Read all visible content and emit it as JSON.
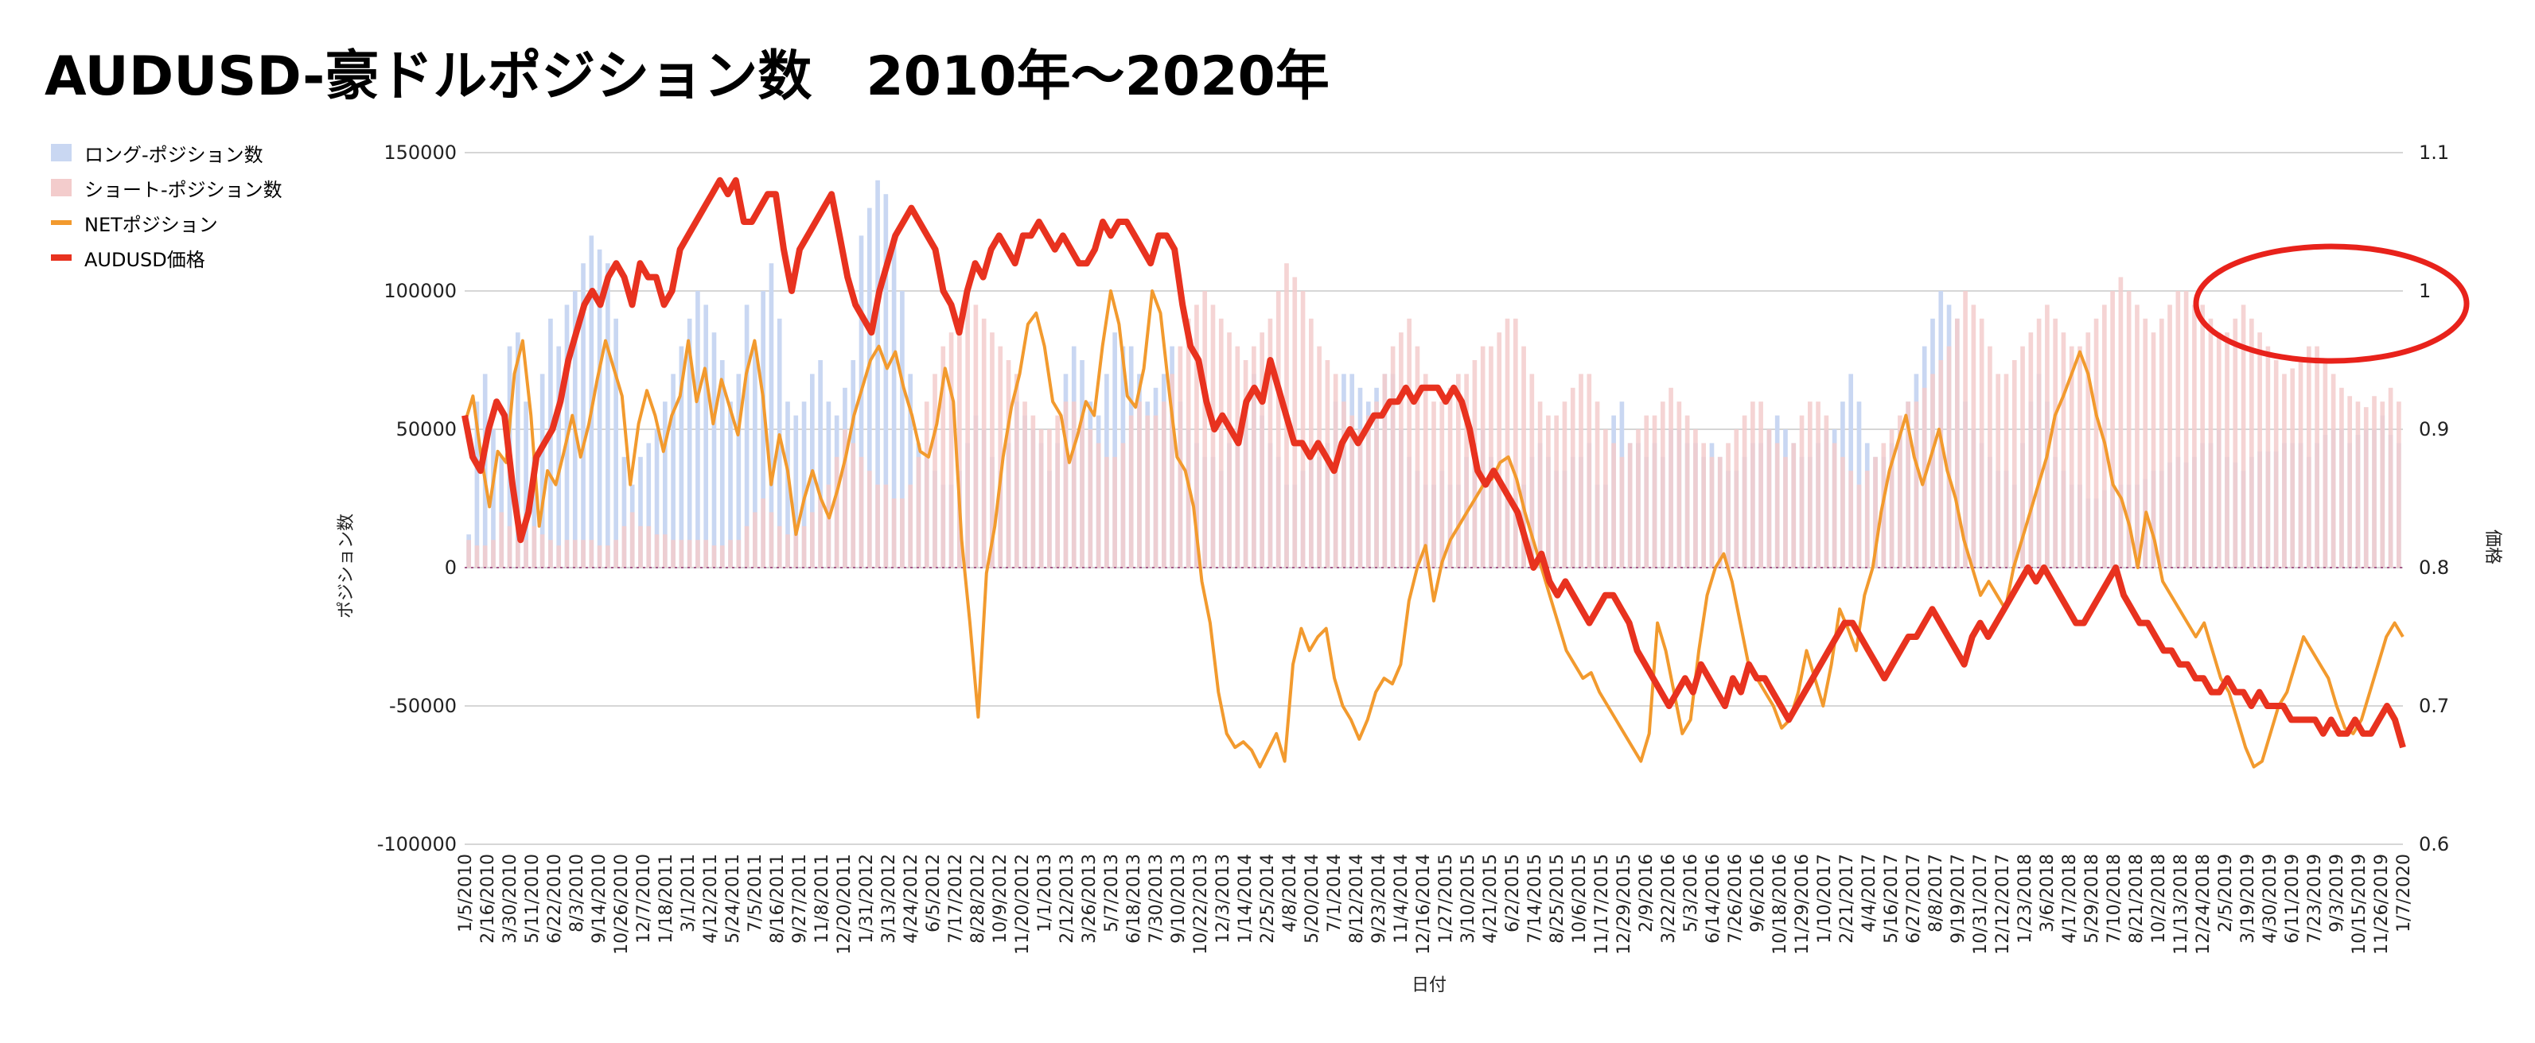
{
  "title": "AUDUSD-豪ドルポジション数　2010年〜2020年",
  "chart_data": {
    "type": "bar",
    "title": "AUDUSD-豪ドルポジション数　2010年〜2020年",
    "xlabel": "日付",
    "ylabel": "ポジション数",
    "y2label": "価格",
    "ylim": [
      -100000,
      150000
    ],
    "y2lim": [
      0.6,
      1.1
    ],
    "y_ticks": [
      "150000",
      "100000",
      "50000",
      "0",
      "-50000",
      "-100000"
    ],
    "y2_ticks": [
      "1.1",
      "1",
      "0.9",
      "0.8",
      "0.7",
      "0.6"
    ],
    "legend_position": "top-left",
    "grid": true,
    "colors": {
      "long": "#c9d7f2",
      "short": "#f3cccc",
      "net": "#f29a2e",
      "price": "#e8321f",
      "annotation": "#e8221b"
    },
    "annotation": "red-circle-highlight-top-right",
    "x_tick_labels": [
      "1/5/2010",
      "2/16/2010",
      "3/30/2010",
      "5/11/2010",
      "6/22/2010",
      "8/3/2010",
      "9/14/2010",
      "10/26/2010",
      "12/7/2010",
      "1/18/2011",
      "3/1/2011",
      "4/12/2011",
      "5/24/2011",
      "7/5/2011",
      "8/16/2011",
      "9/27/2011",
      "11/8/2011",
      "12/20/2011",
      "1/31/2012",
      "3/13/2012",
      "4/24/2012",
      "6/5/2012",
      "7/17/2012",
      "8/28/2012",
      "10/9/2012",
      "11/20/2012",
      "1/1/2013",
      "2/12/2013",
      "3/26/2013",
      "5/7/2013",
      "6/18/2013",
      "7/30/2013",
      "9/10/2013",
      "10/22/2013",
      "12/3/2013",
      "1/14/2014",
      "2/25/2014",
      "4/8/2014",
      "5/20/2014",
      "7/1/2014",
      "8/12/2014",
      "9/23/2014",
      "11/4/2014",
      "12/16/2014",
      "1/27/2015",
      "3/10/2015",
      "4/21/2015",
      "6/2/2015",
      "7/14/2015",
      "8/25/2015",
      "10/6/2015",
      "11/17/2015",
      "12/29/2015",
      "2/9/2016",
      "3/22/2016",
      "5/3/2016",
      "6/14/2016",
      "7/26/2016",
      "9/6/2016",
      "10/18/2016",
      "11/29/2016",
      "1/10/2017",
      "2/21/2017",
      "4/4/2017",
      "5/16/2017",
      "6/27/2017",
      "8/8/2017",
      "9/19/2017",
      "10/31/2017",
      "12/12/2017",
      "1/23/2018",
      "3/6/2018",
      "4/17/2018",
      "5/29/2018",
      "7/10/2018",
      "8/21/2018",
      "10/2/2018",
      "11/13/2018",
      "12/24/2018",
      "2/5/2019",
      "3/19/2019",
      "4/30/2019",
      "6/11/2019",
      "7/23/2019",
      "9/3/2019",
      "10/15/2019",
      "11/26/2019",
      "1/7/2020"
    ],
    "series": [
      {
        "name": "ロング-ポジション数",
        "kind": "bar",
        "values": [
          12000,
          60000,
          70000,
          50000,
          40000,
          80000,
          85000,
          60000,
          40000,
          70000,
          90000,
          80000,
          95000,
          100000,
          110000,
          120000,
          115000,
          110000,
          90000,
          40000,
          30000,
          40000,
          45000,
          50000,
          60000,
          70000,
          80000,
          90000,
          100000,
          95000,
          85000,
          75000,
          60000,
          70000,
          95000,
          80000,
          100000,
          110000,
          90000,
          60000,
          55000,
          60000,
          70000,
          75000,
          60000,
          55000,
          65000,
          75000,
          120000,
          130000,
          140000,
          135000,
          120000,
          100000,
          70000,
          45000,
          40000,
          35000,
          30000,
          30000,
          35000,
          45000,
          55000,
          50000,
          40000,
          35000,
          45000,
          60000,
          55000,
          50000,
          45000,
          35000,
          45000,
          70000,
          80000,
          75000,
          60000,
          55000,
          70000,
          85000,
          80000,
          80000,
          70000,
          60000,
          65000,
          70000,
          80000,
          60000,
          50000,
          45000,
          40000,
          40000,
          35000,
          45000,
          50000,
          60000,
          70000,
          55000,
          45000,
          40000,
          30000,
          30000,
          35000,
          40000,
          40000,
          45000,
          60000,
          70000,
          70000,
          65000,
          60000,
          65000,
          70000,
          70000,
          50000,
          40000,
          35000,
          30000,
          30000,
          35000,
          30000,
          30000,
          40000,
          45000,
          50000,
          40000,
          30000,
          25000,
          25000,
          30000,
          40000,
          45000,
          40000,
          35000,
          35000,
          40000,
          40000,
          45000,
          30000,
          30000,
          55000,
          60000,
          45000,
          45000,
          40000,
          45000,
          40000,
          50000,
          50000,
          45000,
          45000,
          40000,
          45000,
          40000,
          35000,
          35000,
          40000,
          45000,
          45000,
          50000,
          55000,
          50000,
          45000,
          40000,
          40000,
          45000,
          50000,
          50000,
          60000,
          70000,
          60000,
          45000,
          40000,
          40000,
          45000,
          50000,
          60000,
          70000,
          80000,
          90000,
          100000,
          95000,
          90000,
          60000,
          50000,
          45000,
          40000,
          35000,
          35000,
          30000,
          45000,
          60000,
          70000,
          60000,
          40000,
          35000,
          30000,
          30000,
          25000,
          25000,
          28000,
          30000,
          30000,
          30000,
          30000,
          32000,
          35000,
          35000,
          38000,
          40000,
          38000,
          40000,
          45000,
          45000,
          50000,
          40000,
          38000,
          35000,
          40000,
          42000,
          42000,
          42000,
          45000,
          45000,
          45000,
          40000,
          45000,
          48000,
          50000,
          50000,
          45000,
          48000,
          50000,
          50000,
          55000,
          48000,
          45000
        ]
      },
      {
        "name": "ショート-ポジション数",
        "kind": "bar",
        "values": [
          10000,
          8000,
          8000,
          10000,
          20000,
          15000,
          10000,
          10000,
          15000,
          12000,
          10000,
          8000,
          10000,
          10000,
          10000,
          10000,
          8000,
          8000,
          10000,
          15000,
          20000,
          15000,
          15000,
          12000,
          12000,
          10000,
          10000,
          10000,
          10000,
          10000,
          8000,
          8000,
          10000,
          10000,
          15000,
          20000,
          25000,
          20000,
          15000,
          12000,
          12000,
          15000,
          20000,
          25000,
          30000,
          40000,
          50000,
          45000,
          40000,
          35000,
          30000,
          30000,
          25000,
          25000,
          30000,
          40000,
          60000,
          70000,
          80000,
          85000,
          90000,
          100000,
          95000,
          90000,
          85000,
          80000,
          75000,
          70000,
          60000,
          55000,
          50000,
          50000,
          55000,
          60000,
          60000,
          55000,
          50000,
          45000,
          40000,
          40000,
          45000,
          55000,
          60000,
          55000,
          55000,
          60000,
          70000,
          80000,
          90000,
          95000,
          100000,
          95000,
          90000,
          85000,
          80000,
          75000,
          80000,
          85000,
          90000,
          100000,
          110000,
          105000,
          100000,
          90000,
          80000,
          75000,
          70000,
          60000,
          55000,
          50000,
          55000,
          60000,
          70000,
          80000,
          85000,
          90000,
          80000,
          70000,
          60000,
          60000,
          65000,
          70000,
          70000,
          75000,
          80000,
          80000,
          85000,
          90000,
          90000,
          80000,
          70000,
          60000,
          55000,
          55000,
          60000,
          65000,
          70000,
          70000,
          60000,
          50000,
          45000,
          40000,
          45000,
          50000,
          55000,
          55000,
          60000,
          65000,
          60000,
          55000,
          50000,
          45000,
          40000,
          40000,
          45000,
          50000,
          55000,
          60000,
          60000,
          50000,
          45000,
          40000,
          45000,
          55000,
          60000,
          60000,
          55000,
          45000,
          40000,
          35000,
          30000,
          35000,
          40000,
          45000,
          50000,
          55000,
          60000,
          60000,
          65000,
          70000,
          75000,
          80000,
          90000,
          100000,
          95000,
          90000,
          80000,
          70000,
          70000,
          75000,
          80000,
          85000,
          90000,
          95000,
          90000,
          85000,
          80000,
          80000,
          85000,
          90000,
          95000,
          100000,
          105000,
          100000,
          95000,
          90000,
          85000,
          90000,
          95000,
          100000,
          100000,
          95000,
          95000,
          90000,
          85000,
          85000,
          90000,
          95000,
          90000,
          85000,
          80000,
          75000,
          70000,
          72000,
          75000,
          80000,
          80000,
          75000,
          70000,
          65000,
          62000,
          60000,
          58000,
          62000,
          60000,
          65000,
          60000,
          58000
        ]
      },
      {
        "name": "NETポジション",
        "kind": "line",
        "values": [
          52000,
          62000,
          40000,
          22000,
          42000,
          38000,
          70000,
          82000,
          55000,
          15000,
          35000,
          30000,
          42000,
          55000,
          40000,
          52000,
          68000,
          82000,
          72000,
          62000,
          30000,
          52000,
          64000,
          55000,
          42000,
          55000,
          62000,
          82000,
          60000,
          72000,
          52000,
          68000,
          58000,
          48000,
          70000,
          82000,
          62000,
          30000,
          48000,
          35000,
          12000,
          25000,
          35000,
          25000,
          18000,
          28000,
          40000,
          55000,
          65000,
          75000,
          80000,
          72000,
          78000,
          65000,
          55000,
          42000,
          40000,
          52000,
          72000,
          60000,
          10000,
          -20000,
          -54000,
          -2000,
          15000,
          40000,
          58000,
          70000,
          88000,
          92000,
          80000,
          60000,
          55000,
          38000,
          48000,
          60000,
          55000,
          80000,
          100000,
          88000,
          62000,
          58000,
          72000,
          100000,
          92000,
          65000,
          40000,
          35000,
          22000,
          -5000,
          -20000,
          -45000,
          -60000,
          -65000,
          -63000,
          -66000,
          -72000,
          -66000,
          -60000,
          -70000,
          -35000,
          -22000,
          -30000,
          -25000,
          -22000,
          -40000,
          -50000,
          -55000,
          -62000,
          -55000,
          -45000,
          -40000,
          -42000,
          -35000,
          -12000,
          0,
          8000,
          -12000,
          2000,
          10000,
          15000,
          20000,
          25000,
          30000,
          32000,
          38000,
          40000,
          32000,
          20000,
          10000,
          0,
          -10000,
          -20000,
          -30000,
          -35000,
          -40000,
          -38000,
          -45000,
          -50000,
          -55000,
          -60000,
          -65000,
          -70000,
          -60000,
          -20000,
          -30000,
          -45000,
          -60000,
          -55000,
          -30000,
          -10000,
          0,
          5000,
          -5000,
          -20000,
          -35000,
          -40000,
          -45000,
          -50000,
          -58000,
          -55000,
          -45000,
          -30000,
          -40000,
          -50000,
          -35000,
          -15000,
          -22000,
          -30000,
          -10000,
          0,
          20000,
          35000,
          45000,
          55000,
          40000,
          30000,
          40000,
          50000,
          35000,
          25000,
          10000,
          0,
          -10000,
          -5000,
          -10000,
          -15000,
          0,
          10000,
          20000,
          30000,
          40000,
          55000,
          62000,
          70000,
          78000,
          70000,
          55000,
          45000,
          30000,
          25000,
          15000,
          0,
          20000,
          10000,
          -5000,
          -10000,
          -15000,
          -20000,
          -25000,
          -20000,
          -30000,
          -40000,
          -45000,
          -55000,
          -65000,
          -72000,
          -70000,
          -60000,
          -50000,
          -45000,
          -35000,
          -25000,
          -30000,
          -35000,
          -40000,
          -50000,
          -58000,
          -60000,
          -55000,
          -45000,
          -35000,
          -25000,
          -20000,
          -25000
        ]
      },
      {
        "name": "AUDUSD価格",
        "kind": "line",
        "axis": "right",
        "values": [
          0.91,
          0.88,
          0.87,
          0.9,
          0.92,
          0.91,
          0.86,
          0.82,
          0.84,
          0.88,
          0.89,
          0.9,
          0.92,
          0.95,
          0.97,
          0.99,
          1.0,
          0.99,
          1.01,
          1.02,
          1.01,
          0.99,
          1.02,
          1.01,
          1.01,
          0.99,
          1.0,
          1.03,
          1.04,
          1.05,
          1.06,
          1.07,
          1.08,
          1.07,
          1.08,
          1.05,
          1.05,
          1.06,
          1.07,
          1.07,
          1.03,
          1.0,
          1.03,
          1.04,
          1.05,
          1.06,
          1.07,
          1.04,
          1.01,
          0.99,
          0.98,
          0.97,
          1.0,
          1.02,
          1.04,
          1.05,
          1.06,
          1.05,
          1.04,
          1.03,
          1.0,
          0.99,
          0.97,
          1.0,
          1.02,
          1.01,
          1.03,
          1.04,
          1.03,
          1.02,
          1.04,
          1.04,
          1.05,
          1.04,
          1.03,
          1.04,
          1.03,
          1.02,
          1.02,
          1.03,
          1.05,
          1.04,
          1.05,
          1.05,
          1.04,
          1.03,
          1.02,
          1.04,
          1.04,
          1.03,
          0.99,
          0.96,
          0.95,
          0.92,
          0.9,
          0.91,
          0.9,
          0.89,
          0.92,
          0.93,
          0.92,
          0.95,
          0.93,
          0.91,
          0.89,
          0.89,
          0.88,
          0.89,
          0.88,
          0.87,
          0.89,
          0.9,
          0.89,
          0.9,
          0.91,
          0.91,
          0.92,
          0.92,
          0.93,
          0.92,
          0.93,
          0.93,
          0.93,
          0.92,
          0.93,
          0.92,
          0.9,
          0.87,
          0.86,
          0.87,
          0.86,
          0.85,
          0.84,
          0.82,
          0.8,
          0.81,
          0.79,
          0.78,
          0.79,
          0.78,
          0.77,
          0.76,
          0.77,
          0.78,
          0.78,
          0.77,
          0.76,
          0.74,
          0.73,
          0.72,
          0.71,
          0.7,
          0.71,
          0.72,
          0.71,
          0.73,
          0.72,
          0.71,
          0.7,
          0.72,
          0.71,
          0.73,
          0.72,
          0.72,
          0.71,
          0.7,
          0.69,
          0.7,
          0.71,
          0.72,
          0.73,
          0.74,
          0.75,
          0.76,
          0.76,
          0.75,
          0.74,
          0.73,
          0.72,
          0.73,
          0.74,
          0.75,
          0.75,
          0.76,
          0.77,
          0.76,
          0.75,
          0.74,
          0.73,
          0.75,
          0.76,
          0.75,
          0.76,
          0.77,
          0.78,
          0.79,
          0.8,
          0.79,
          0.8,
          0.79,
          0.78,
          0.77,
          0.76,
          0.76,
          0.77,
          0.78,
          0.79,
          0.8,
          0.78,
          0.77,
          0.76,
          0.76,
          0.75,
          0.74,
          0.74,
          0.73,
          0.73,
          0.72,
          0.72,
          0.71,
          0.71,
          0.72,
          0.71,
          0.71,
          0.7,
          0.71,
          0.7,
          0.7,
          0.7,
          0.69,
          0.69,
          0.69,
          0.69,
          0.68,
          0.69,
          0.68,
          0.68,
          0.69,
          0.68,
          0.68,
          0.69,
          0.7,
          0.69,
          0.67
        ]
      }
    ]
  }
}
